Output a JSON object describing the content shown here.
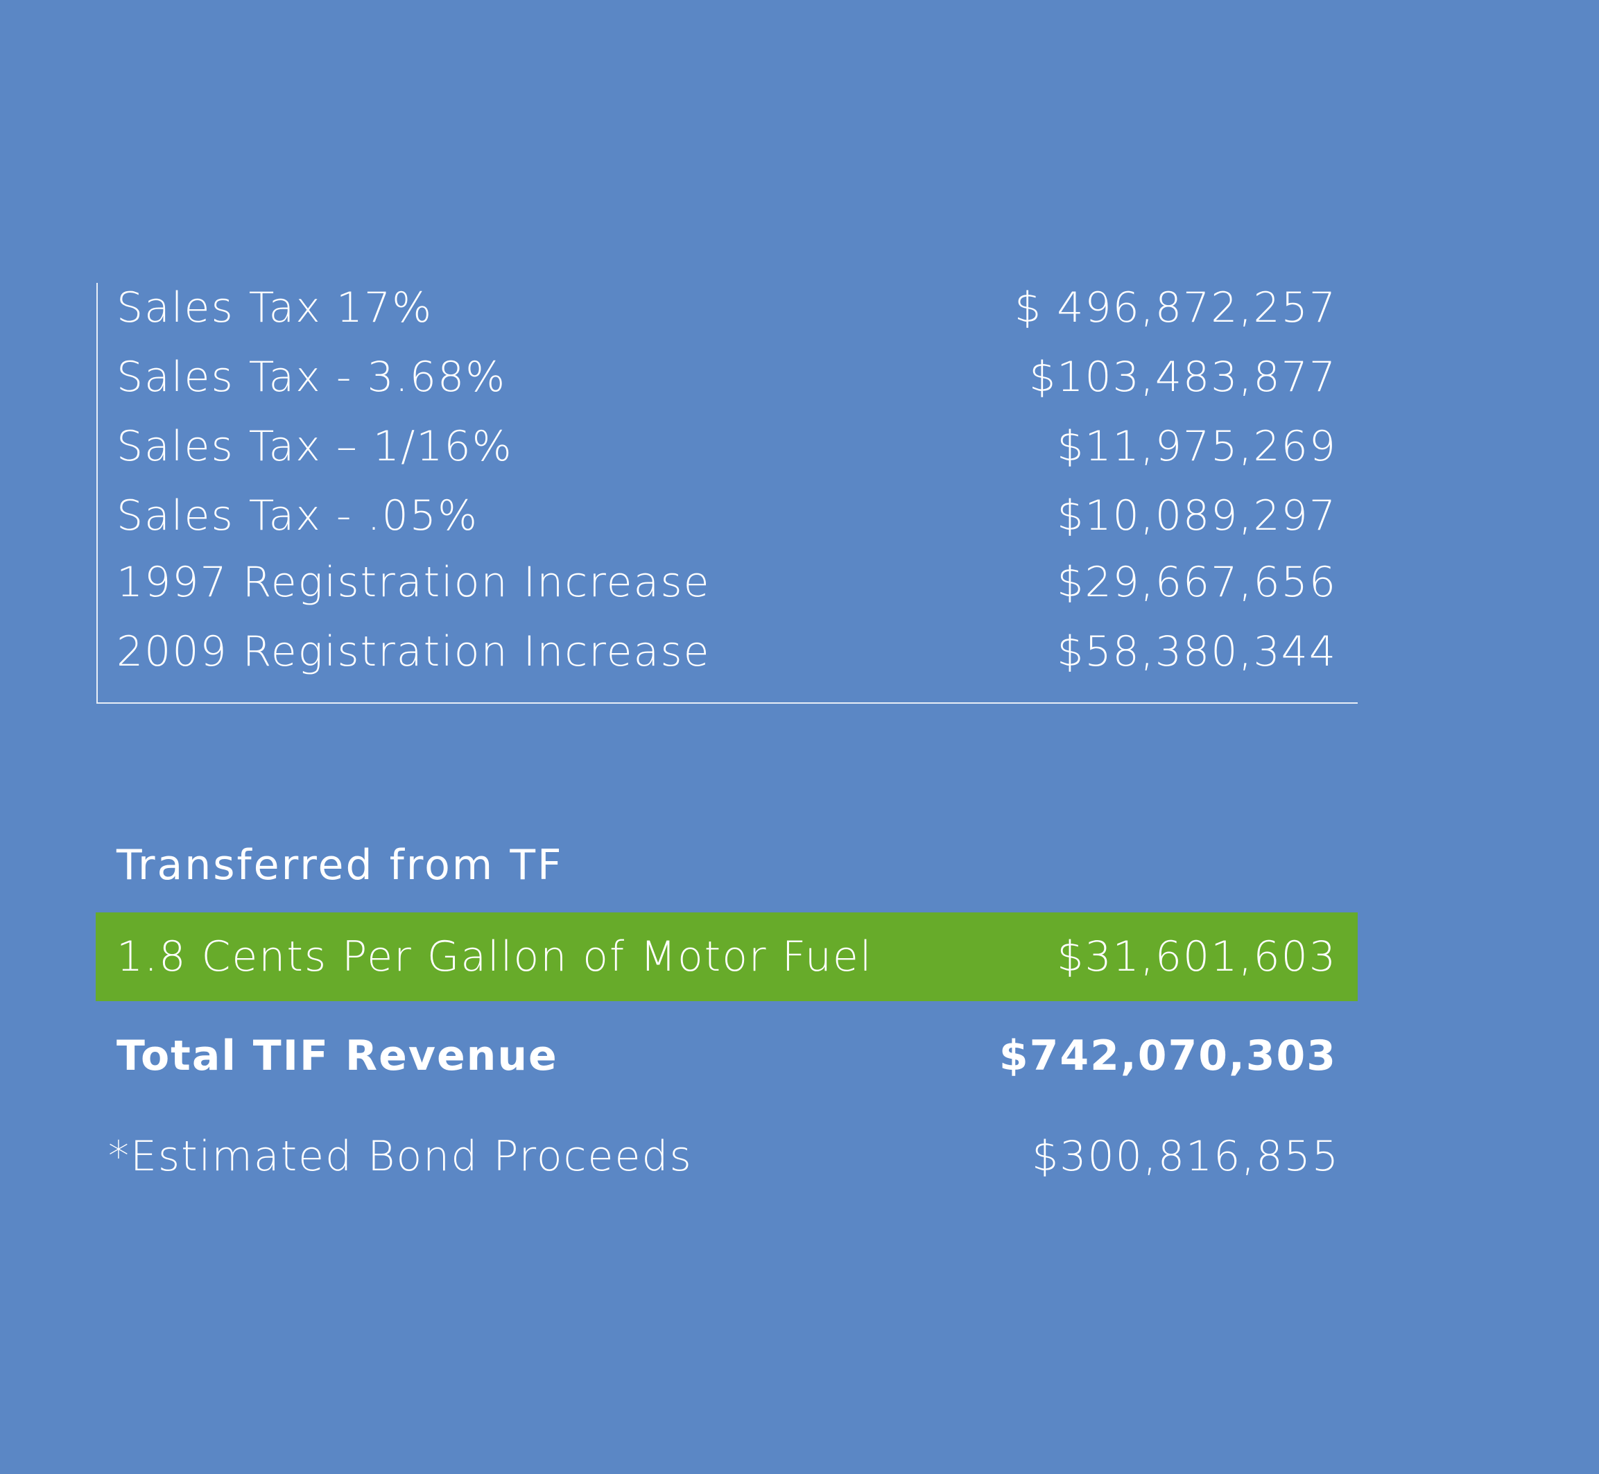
{
  "revenue_sources": [
    {
      "label": "Sales Tax 17%",
      "value": "$ 496,872,257"
    },
    {
      "label": "Sales Tax - 3.68%",
      "value": "$103,483,877"
    },
    {
      "label": "Sales Tax – 1/16%",
      "value": "$11,975,269"
    },
    {
      "label": "Sales Tax - .05%",
      "value": "$10,089,297"
    },
    {
      "label": "1997 Registration Increase",
      "value": "$29,667,656"
    },
    {
      "label": "2009 Registration Increase",
      "value": "$58,380,344"
    }
  ],
  "transferred": {
    "heading": "Transferred from TF",
    "label": "1.8 Cents Per Gallon of Motor Fuel",
    "value": "$31,601,603",
    "highlight_color": "#67ab2a"
  },
  "total": {
    "label": "Total TIF Revenue",
    "value": "$742,070,303"
  },
  "bond": {
    "label": "*Estimated Bond Proceeds",
    "value": "$300,816,855"
  },
  "colors": {
    "background": "#5b87c5",
    "text": "#ffffff"
  }
}
